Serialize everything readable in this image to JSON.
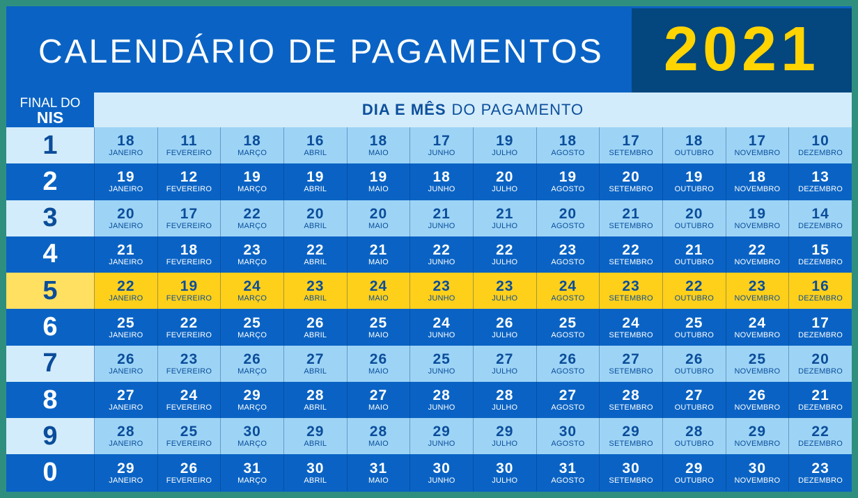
{
  "header": {
    "title": "CALENDÁRIO DE PAGAMENTOS",
    "year": "2021"
  },
  "table": {
    "nis_header_line1": "FINAL DO",
    "nis_header_line2": "NIS",
    "dia_mes_bold": "DIA E MÊS",
    "dia_mes_rest": "DO PAGAMENTO",
    "months": [
      "JANEIRO",
      "FEVEREIRO",
      "MARÇO",
      "ABRIL",
      "MAIO",
      "JUNHO",
      "JULHO",
      "AGOSTO",
      "SETEMBRO",
      "OUTUBRO",
      "NOVEMBRO",
      "DEZEMBRO"
    ],
    "rows": [
      {
        "nis": "1",
        "style": "light",
        "days": [
          "18",
          "11",
          "18",
          "16",
          "18",
          "17",
          "19",
          "18",
          "17",
          "18",
          "17",
          "10"
        ]
      },
      {
        "nis": "2",
        "style": "dark",
        "days": [
          "19",
          "12",
          "19",
          "19",
          "19",
          "18",
          "20",
          "19",
          "20",
          "19",
          "18",
          "13"
        ]
      },
      {
        "nis": "3",
        "style": "light",
        "days": [
          "20",
          "17",
          "22",
          "20",
          "20",
          "21",
          "21",
          "20",
          "21",
          "20",
          "19",
          "14"
        ]
      },
      {
        "nis": "4",
        "style": "dark",
        "days": [
          "21",
          "18",
          "23",
          "22",
          "21",
          "22",
          "22",
          "23",
          "22",
          "21",
          "22",
          "15"
        ]
      },
      {
        "nis": "5",
        "style": "highlight",
        "days": [
          "22",
          "19",
          "24",
          "23",
          "24",
          "23",
          "23",
          "24",
          "23",
          "22",
          "23",
          "16"
        ]
      },
      {
        "nis": "6",
        "style": "dark",
        "days": [
          "25",
          "22",
          "25",
          "26",
          "25",
          "24",
          "26",
          "25",
          "24",
          "25",
          "24",
          "17"
        ]
      },
      {
        "nis": "7",
        "style": "light",
        "days": [
          "26",
          "23",
          "26",
          "27",
          "26",
          "25",
          "27",
          "26",
          "27",
          "26",
          "25",
          "20"
        ]
      },
      {
        "nis": "8",
        "style": "dark",
        "days": [
          "27",
          "24",
          "29",
          "28",
          "27",
          "28",
          "28",
          "27",
          "28",
          "27",
          "26",
          "21"
        ]
      },
      {
        "nis": "9",
        "style": "light",
        "days": [
          "28",
          "25",
          "30",
          "29",
          "28",
          "29",
          "29",
          "30",
          "29",
          "28",
          "29",
          "22"
        ]
      },
      {
        "nis": "0",
        "style": "dark",
        "days": [
          "29",
          "26",
          "31",
          "30",
          "31",
          "30",
          "30",
          "31",
          "30",
          "29",
          "30",
          "23"
        ]
      }
    ]
  },
  "colors": {
    "blue": "#0a63c4",
    "dark_blue": "#04467e",
    "light_blue": "#9dd4f6",
    "pale_blue": "#d3ecfb",
    "yellow": "#ffd01a",
    "year_yellow": "#ffd400"
  }
}
